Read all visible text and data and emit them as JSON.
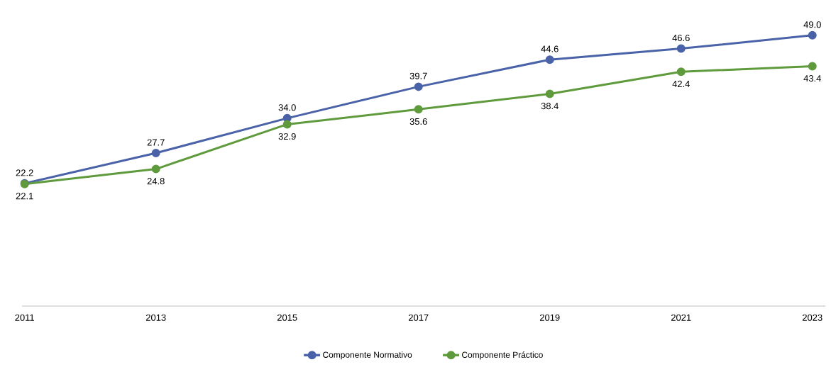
{
  "chart_data": {
    "type": "line",
    "categories": [
      "2011",
      "2013",
      "2015",
      "2017",
      "2019",
      "2021",
      "2023"
    ],
    "series": [
      {
        "name": "Componente Normativo",
        "color": "#4a62a8",
        "values": [
          22.2,
          27.7,
          34.0,
          39.7,
          44.6,
          46.6,
          49.0
        ],
        "value_labels": [
          "22.2",
          "27.7",
          "34.0",
          "39.7",
          "44.6",
          "46.6",
          "49.0"
        ]
      },
      {
        "name": "Componente Práctico",
        "color": "#5f9b3d",
        "values": [
          22.1,
          24.8,
          32.9,
          35.6,
          38.4,
          42.4,
          43.4
        ],
        "value_labels": [
          "22.1",
          "24.8",
          "32.9",
          "35.6",
          "38.4",
          "42.4",
          "43.4"
        ]
      }
    ],
    "tick_labels": "x",
    "legend": "bottom",
    "marker": "circle",
    "line_style": "solid",
    "grid": false
  }
}
